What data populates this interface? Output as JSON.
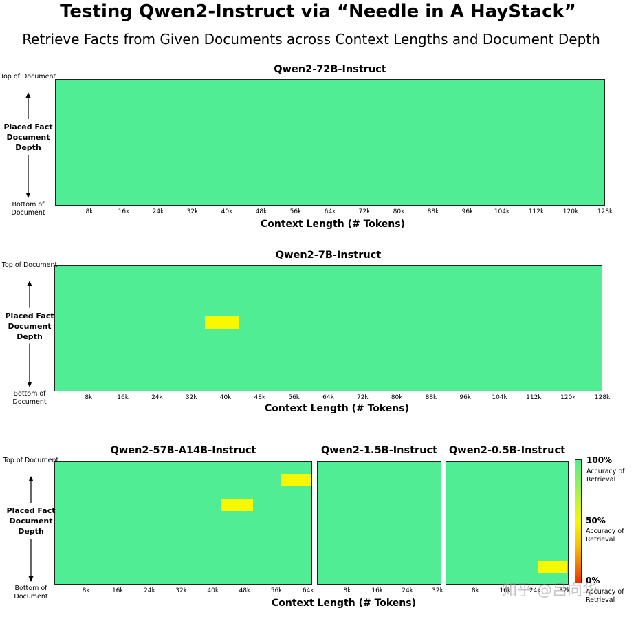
{
  "title": "Testing Qwen2-Instruct via “Needle in A HayStack”",
  "subtitle": "Retrieve Facts from Given Documents across Context Lengths and Document Depth",
  "y_axis": {
    "top": "Top of Document",
    "bottom": "Bottom of Document",
    "label": "Placed Fact Document Depth"
  },
  "colorbar": {
    "high_pct": "100%",
    "high_label": "Accuracy of Retrieval",
    "mid_pct": "50%",
    "mid_label": "Accuracy of Retrieval",
    "low_pct": "0%",
    "low_label": "Accuracy of Retrieval",
    "colors": [
      "#50ed94",
      "#f8f800",
      "#e83000"
    ]
  },
  "watermark": "知乎 @吕向华",
  "chart_data": [
    {
      "type": "heatmap",
      "title": "Qwen2-72B-Instruct",
      "xlabel": "Context Length (# Tokens)",
      "x_ticks": [
        "8k",
        "16k",
        "24k",
        "32k",
        "40k",
        "48k",
        "56k",
        "64k",
        "72k",
        "80k",
        "88k",
        "96k",
        "104k",
        "112k",
        "120k",
        "128k"
      ],
      "y_range": [
        "Top of Document",
        "Bottom of Document"
      ],
      "default_accuracy": 100,
      "low_cells": []
    },
    {
      "type": "heatmap",
      "title": "Qwen2-7B-Instruct",
      "xlabel": "Context Length (# Tokens)",
      "x_ticks": [
        "8k",
        "16k",
        "24k",
        "32k",
        "40k",
        "48k",
        "56k",
        "64k",
        "72k",
        "80k",
        "88k",
        "96k",
        "104k",
        "112k",
        "120k",
        "128k"
      ],
      "y_range": [
        "Top of Document",
        "Bottom of Document"
      ],
      "default_accuracy": 100,
      "low_cells": [
        {
          "context_tokens_k": [
            35,
            43
          ],
          "depth_pct": [
            40,
            50
          ],
          "accuracy": 50
        }
      ]
    },
    {
      "type": "heatmap",
      "title": "Qwen2-57B-A14B-Instruct",
      "xlabel": "Context Length (# Tokens)",
      "x_ticks": [
        "8k",
        "16k",
        "24k",
        "32k",
        "40k",
        "48k",
        "56k",
        "64k"
      ],
      "y_range": [
        "Top of Document",
        "Bottom of Document"
      ],
      "default_accuracy": 100,
      "low_cells": [
        {
          "context_tokens_k": [
            42,
            50
          ],
          "depth_pct": [
            30,
            40
          ],
          "accuracy": 50
        },
        {
          "context_tokens_k": [
            57,
            65
          ],
          "depth_pct": [
            10,
            20
          ],
          "accuracy": 50
        }
      ]
    },
    {
      "type": "heatmap",
      "title": "Qwen2-1.5B-Instruct",
      "xlabel": "",
      "x_ticks": [
        "8k",
        "16k",
        "24k",
        "32k"
      ],
      "y_range": [
        "Top of Document",
        "Bottom of Document"
      ],
      "default_accuracy": 100,
      "low_cells": []
    },
    {
      "type": "heatmap",
      "title": "Qwen2-0.5B-Instruct",
      "xlabel": "",
      "x_ticks": [
        "8k",
        "16k",
        "24k",
        "32k"
      ],
      "y_range": [
        "Top of Document",
        "Bottom of Document"
      ],
      "default_accuracy": 100,
      "low_cells": [
        {
          "context_tokens_k": [
            24.5,
            32.3
          ],
          "depth_pct": [
            80,
            90
          ],
          "accuracy": 50
        }
      ]
    }
  ]
}
